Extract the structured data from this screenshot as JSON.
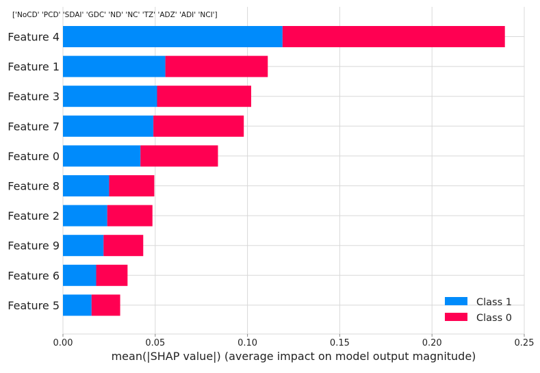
{
  "chart_data": {
    "type": "bar",
    "orientation": "horizontal",
    "stacked": true,
    "title": "['NoCD' 'PCD' 'SDAI' 'GDC' 'ND' 'NC' 'TZ' 'ADZ' 'ADI' 'NCI']",
    "xlabel": "mean(|SHAP value|) (average impact on model output magnitude)",
    "ylabel": "",
    "xlim": [
      0,
      0.25
    ],
    "xticks": [
      0.0,
      0.05,
      0.1,
      0.15,
      0.2,
      0.25
    ],
    "xtick_labels": [
      "0.00",
      "0.05",
      "0.10",
      "0.15",
      "0.20",
      "0.25"
    ],
    "categories": [
      "Feature 4",
      "Feature 1",
      "Feature 3",
      "Feature 7",
      "Feature 0",
      "Feature 8",
      "Feature 2",
      "Feature 9",
      "Feature 6",
      "Feature 5"
    ],
    "series": [
      {
        "name": "Class 1",
        "color": "#008bfb",
        "values": [
          0.119,
          0.0555,
          0.051,
          0.049,
          0.042,
          0.025,
          0.024,
          0.022,
          0.018,
          0.0155
        ]
      },
      {
        "name": "Class 0",
        "color": "#ff0052",
        "values": [
          0.1205,
          0.0555,
          0.051,
          0.049,
          0.042,
          0.0245,
          0.0245,
          0.0215,
          0.017,
          0.0155
        ]
      }
    ],
    "grid": true,
    "legend_position": "bottom-right"
  }
}
